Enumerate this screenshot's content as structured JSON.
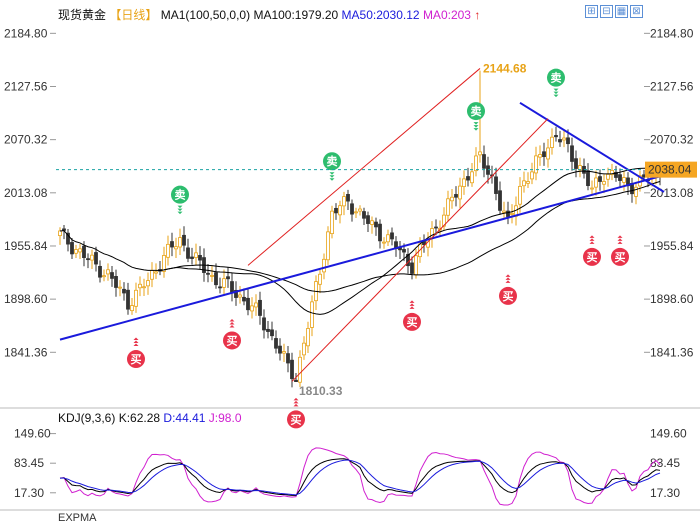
{
  "header": {
    "title": "现货黄金",
    "period": "【日线】",
    "ma1": "MA1(100,50,0,0)",
    "ma100": "MA100:1979.20",
    "ma50": "MA50:2030.12",
    "ma0": "MA0:203",
    "ma0_arrow": "↑"
  },
  "toolbar": {
    "icons": [
      "zoom-in-icon",
      "zoom-out-icon",
      "grid-icon",
      "close-icon"
    ],
    "glyphs": [
      "⊞",
      "⊟",
      "▦",
      "⊠"
    ]
  },
  "kdj_header": {
    "name": "KDJ(9,3,6)",
    "k": "K:62.28",
    "d": "D:44.41",
    "j": "J:98.0"
  },
  "bottom_cut_text": "EXPMA",
  "colors": {
    "up": "#e8a317",
    "down": "#333333",
    "ma50": "#000000",
    "ma100": "#000000",
    "channel": "#e02020",
    "trend": "#1a1adc",
    "current_price_bg": "#f5a623",
    "sell_badge": "#2dbd6e",
    "buy_badge": "#e8334a",
    "j_line": "#d020d0"
  },
  "chart_data": {
    "type": "candlestick",
    "title": "现货黄金",
    "y_ticks": [
      "2184.80",
      "2127.56",
      "2070.32",
      "2013.08",
      "1955.84",
      "1898.60",
      "1841.36"
    ],
    "ylim": [
      1790,
      2197
    ],
    "current_price": "2038.04",
    "current_price_value": 2038.04,
    "annotations": [
      {
        "text": "2144.68",
        "value": 2144.68,
        "bar": 105
      },
      {
        "text": "1810.33",
        "value": 1810.33,
        "bar": 59
      }
    ],
    "signals": [
      {
        "label": "卖",
        "type": "sell",
        "bar": 30,
        "price": 1968
      },
      {
        "label": "卖",
        "type": "sell",
        "bar": 68,
        "price": 2004
      },
      {
        "label": "卖",
        "type": "sell",
        "bar": 104,
        "price": 2058
      },
      {
        "label": "卖",
        "type": "sell",
        "bar": 124,
        "price": 2094
      },
      {
        "label": "买",
        "type": "buy",
        "bar": 19,
        "price": 1875
      },
      {
        "label": "买",
        "type": "buy",
        "bar": 43,
        "price": 1895
      },
      {
        "label": "买",
        "type": "buy",
        "bar": 59,
        "price": 1810
      },
      {
        "label": "买",
        "type": "buy",
        "bar": 88,
        "price": 1915
      },
      {
        "label": "买",
        "type": "buy",
        "bar": 112,
        "price": 1943
      },
      {
        "label": "买",
        "type": "buy",
        "bar": 133,
        "price": 1985
      },
      {
        "label": "买",
        "type": "buy",
        "bar": 140,
        "price": 1985
      }
    ],
    "trendlines": [
      {
        "name": "support",
        "color": "trend",
        "from": [
          0,
          1855
        ],
        "to": [
          151,
          2032
        ]
      },
      {
        "name": "resistance",
        "color": "trend",
        "from": [
          115,
          2110
        ],
        "to": [
          151,
          2014
        ]
      },
      {
        "name": "channel-upper",
        "color": "channel",
        "from": [
          47,
          1935
        ],
        "to": [
          105,
          2147
        ]
      },
      {
        "name": "channel-lower",
        "color": "channel",
        "from": [
          58,
          1810
        ],
        "to": [
          122,
          2093
        ]
      }
    ],
    "kdj": {
      "y_ticks": [
        "149.60",
        "83.45",
        "17.30"
      ],
      "ylim": [
        -10,
        180
      ],
      "k_last": 62.28,
      "d_last": 44.41,
      "j_last": 98.0
    }
  }
}
